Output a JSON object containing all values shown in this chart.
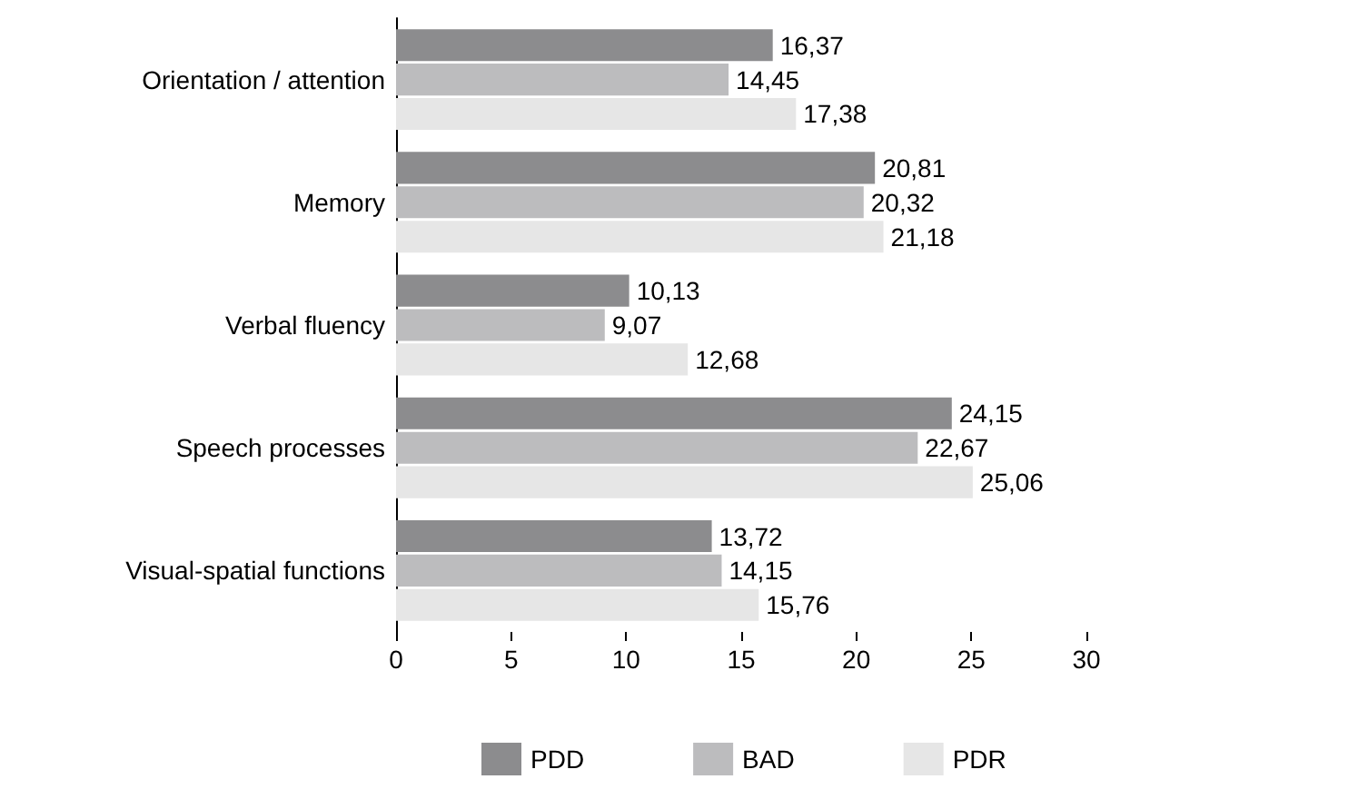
{
  "chart_data": {
    "type": "bar",
    "orientation": "horizontal",
    "categories": [
      "Orientation / attention",
      "Memory",
      "Verbal fluency",
      "Speech processes",
      "Visual-spatial functions"
    ],
    "series": [
      {
        "name": "PDD",
        "color": "#8c8c8e",
        "values": [
          16.37,
          20.81,
          10.13,
          24.15,
          13.72
        ],
        "value_labels": [
          "16,37",
          "20,81",
          "10,13",
          "24,15",
          "13,72"
        ]
      },
      {
        "name": "BAD",
        "color": "#bcbcbe",
        "values": [
          14.45,
          20.32,
          9.07,
          22.67,
          14.15
        ],
        "value_labels": [
          "14,45",
          "20,32",
          "9,07",
          "22,67",
          "14,15"
        ]
      },
      {
        "name": "PDR",
        "color": "#e6e6e6",
        "values": [
          17.38,
          21.18,
          12.68,
          25.06,
          15.76
        ],
        "value_labels": [
          "17,38",
          "21,18",
          "12,68",
          "25,06",
          "15,76"
        ]
      }
    ],
    "xlim": [
      0,
      30
    ],
    "xticks": [
      0,
      5,
      10,
      15,
      20,
      25,
      30
    ],
    "grid": false,
    "legend": "bottom"
  }
}
